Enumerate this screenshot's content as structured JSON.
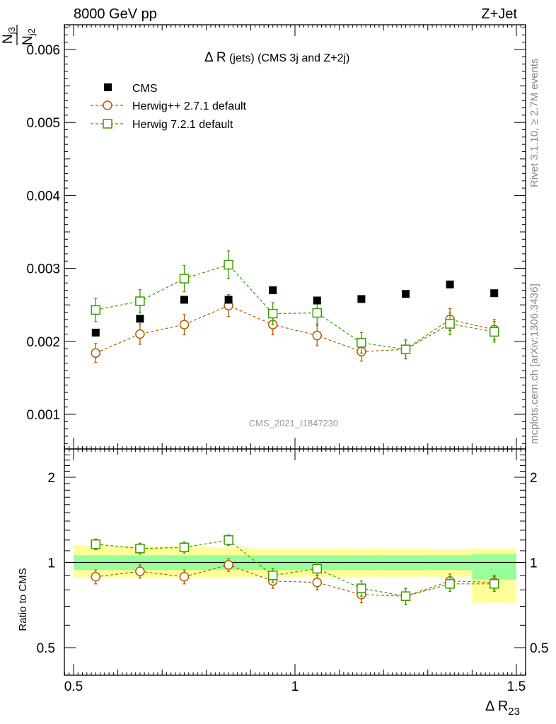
{
  "header": {
    "left": "8000 GeV pp",
    "right": "Z+Jet",
    "ylabel_num": "N",
    "ylabel_num_sub": "j3",
    "ylabel_den": "N",
    "ylabel_den_sub": "j2",
    "title_main": "Δ R",
    "title_rest": " (jets) (CMS 3j and Z+2j)",
    "xlabel_main": "Δ R",
    "xlabel_sub": "23",
    "watermark": "CMS_2021_I1847230",
    "side_text_top": "Rivet 3.1.10, ≥ 2.7M events",
    "side_text_bottom": "mcplots.cern.ch [arXiv:1306.3436]",
    "ratio_ylabel": "Ratio to CMS"
  },
  "colors": {
    "cms": "#000000",
    "herwigpp": "#b35900",
    "herwig7": "#3a9a00",
    "band_inner": "#99ff99",
    "band_outer": "#ffff99"
  },
  "chart_data": [
    {
      "type": "scatter",
      "panel": "main",
      "xlim": [
        0.5,
        1.5
      ],
      "ylim": [
        0.0004,
        0.0063
      ],
      "yticks": [
        0.001,
        0.002,
        0.003,
        0.004,
        0.005,
        0.006
      ],
      "ytick_labels": [
        "0.001",
        "0.002",
        "0.003",
        "0.004",
        "0.005",
        "0.006"
      ],
      "x_edges": [
        0.5,
        0.6,
        0.7,
        0.8,
        0.9,
        1.0,
        1.1,
        1.2,
        1.3,
        1.4,
        1.5
      ],
      "x": [
        0.55,
        0.65,
        0.75,
        0.85,
        0.95,
        1.05,
        1.15,
        1.25,
        1.35,
        1.45
      ],
      "legend": [
        "CMS",
        "Herwig++ 2.7.1 default",
        "Herwig 7.2.1 default"
      ],
      "series": [
        {
          "name": "CMS",
          "values": [
            0.00212,
            0.00231,
            0.00257,
            0.00257,
            0.0027,
            0.00256,
            0.00258,
            0.00265,
            0.00278,
            0.00266
          ]
        },
        {
          "name": "Herwig++ 2.7.1 default",
          "values": [
            0.00184,
            0.0021,
            0.00223,
            0.00249,
            0.00223,
            0.00208,
            0.00186,
            0.00189,
            0.0023,
            0.00216
          ],
          "errors": [
            0.00013,
            0.00014,
            0.00014,
            0.00015,
            0.00014,
            0.00014,
            0.00013,
            0.00013,
            0.00015,
            0.00014
          ]
        },
        {
          "name": "Herwig 7.2.1 default",
          "values": [
            0.00243,
            0.00255,
            0.00286,
            0.00305,
            0.00238,
            0.00239,
            0.00198,
            0.00189,
            0.00224,
            0.00213
          ],
          "errors": [
            0.00016,
            0.00016,
            0.00018,
            0.00019,
            0.00015,
            0.00015,
            0.00014,
            0.00013,
            0.00015,
            0.00014
          ]
        }
      ]
    },
    {
      "type": "scatter",
      "panel": "ratio",
      "xlim": [
        0.5,
        1.5
      ],
      "ylim": [
        0.35,
        2.45
      ],
      "yticks": [
        0.5,
        1,
        2
      ],
      "ytick_labels": [
        "0.5",
        "1",
        "2"
      ],
      "xticks": [
        0.5,
        1,
        1.5
      ],
      "xtick_labels": [
        "0.5",
        "1",
        "1.5"
      ],
      "x_edges": [
        0.5,
        0.6,
        0.7,
        0.8,
        0.9,
        1.0,
        1.1,
        1.2,
        1.3,
        1.4,
        1.5
      ],
      "x": [
        0.55,
        0.65,
        0.75,
        0.85,
        0.95,
        1.05,
        1.15,
        1.25,
        1.35,
        1.45
      ],
      "band_inner": [
        [
          0.94,
          1.06
        ],
        [
          0.94,
          1.06
        ],
        [
          0.94,
          1.06
        ],
        [
          0.94,
          1.06
        ],
        [
          0.94,
          1.06
        ],
        [
          0.94,
          1.06
        ],
        [
          0.94,
          1.06
        ],
        [
          0.94,
          1.06
        ],
        [
          0.94,
          1.06
        ],
        [
          0.87,
          1.07
        ]
      ],
      "band_outer": [
        [
          0.88,
          1.15
        ],
        [
          0.88,
          1.14
        ],
        [
          0.88,
          1.14
        ],
        [
          0.88,
          1.13
        ],
        [
          0.89,
          1.12
        ],
        [
          0.89,
          1.12
        ],
        [
          0.89,
          1.12
        ],
        [
          0.89,
          1.12
        ],
        [
          0.89,
          1.11
        ],
        [
          0.72,
          1.12
        ]
      ],
      "series": [
        {
          "name": "Herwig++ 2.7.1 default",
          "values": [
            0.89,
            0.93,
            0.89,
            0.98,
            0.86,
            0.85,
            0.77,
            0.76,
            0.86,
            0.85
          ],
          "errors": [
            0.05,
            0.05,
            0.05,
            0.05,
            0.05,
            0.05,
            0.05,
            0.05,
            0.05,
            0.05
          ]
        },
        {
          "name": "Herwig 7.2.1 default",
          "values": [
            1.16,
            1.12,
            1.13,
            1.2,
            0.9,
            0.95,
            0.81,
            0.76,
            0.84,
            0.84
          ],
          "errors": [
            0.05,
            0.05,
            0.05,
            0.05,
            0.05,
            0.05,
            0.05,
            0.05,
            0.05,
            0.05
          ]
        }
      ]
    }
  ]
}
